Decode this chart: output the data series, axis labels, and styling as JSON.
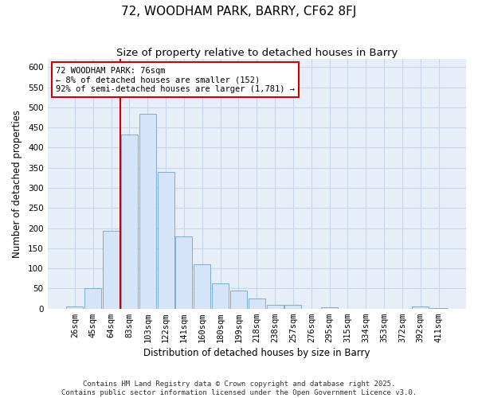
{
  "title": "72, WOODHAM PARK, BARRY, CF62 8FJ",
  "subtitle": "Size of property relative to detached houses in Barry",
  "xlabel": "Distribution of detached houses by size in Barry",
  "ylabel": "Number of detached properties",
  "bar_labels": [
    "26sqm",
    "45sqm",
    "64sqm",
    "83sqm",
    "103sqm",
    "122sqm",
    "141sqm",
    "160sqm",
    "180sqm",
    "199sqm",
    "218sqm",
    "238sqm",
    "257sqm",
    "276sqm",
    "295sqm",
    "315sqm",
    "334sqm",
    "353sqm",
    "372sqm",
    "392sqm",
    "411sqm"
  ],
  "bar_values": [
    5,
    50,
    193,
    433,
    484,
    339,
    179,
    110,
    62,
    44,
    25,
    10,
    9,
    0,
    3,
    0,
    0,
    0,
    0,
    5,
    2
  ],
  "bar_color": "#d6e4f7",
  "bar_edge_color": "#7aadd4",
  "vline_color": "#cc0000",
  "annotation_text": "72 WOODHAM PARK: 76sqm\n← 8% of detached houses are smaller (152)\n92% of semi-detached houses are larger (1,781) →",
  "annotation_box_color": "#ffffff",
  "annotation_box_edge": "#cc0000",
  "ylim": [
    0,
    620
  ],
  "yticks": [
    0,
    50,
    100,
    150,
    200,
    250,
    300,
    350,
    400,
    450,
    500,
    550,
    600
  ],
  "footer_line1": "Contains HM Land Registry data © Crown copyright and database right 2025.",
  "footer_line2": "Contains public sector information licensed under the Open Government Licence v3.0.",
  "bg_color": "#ffffff",
  "plot_bg_color": "#e8eef8",
  "grid_color": "#c8d4e8",
  "title_fontsize": 11,
  "subtitle_fontsize": 9.5,
  "axis_label_fontsize": 8.5,
  "tick_fontsize": 7.5,
  "annotation_fontsize": 7.5,
  "footer_fontsize": 6.5
}
